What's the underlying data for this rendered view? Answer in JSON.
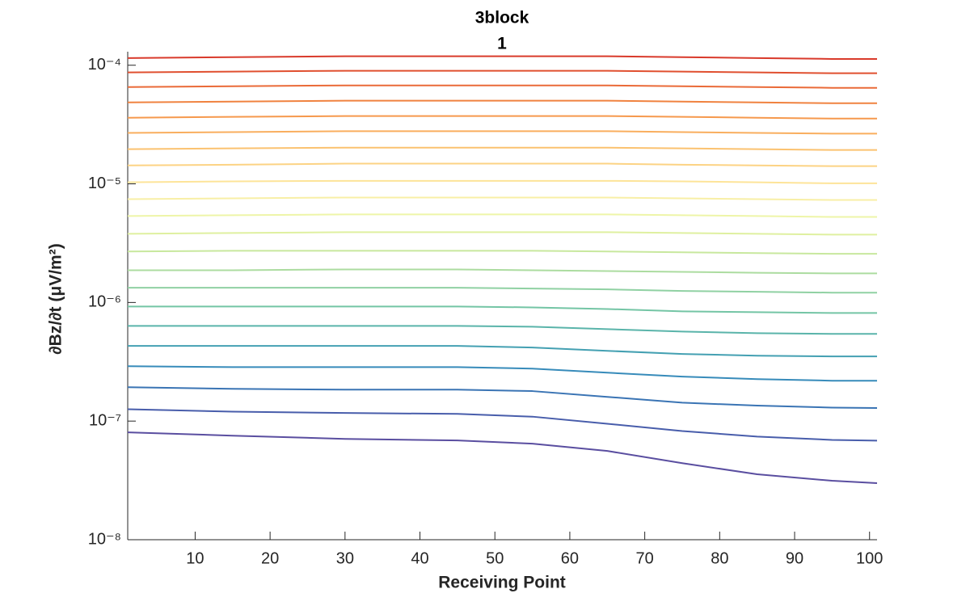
{
  "chart_data": {
    "type": "line",
    "title": "3block",
    "subtitle": "1",
    "xlabel": "Receiving Point",
    "ylabel": "∂Bz/∂t (μV/m²)",
    "log_y": true,
    "grid": false,
    "xlim": [
      1,
      101
    ],
    "xticks": [
      10,
      20,
      30,
      40,
      50,
      60,
      70,
      80,
      90,
      100
    ],
    "ylim": [
      1e-08,
      0.00013
    ],
    "yticks": [
      {
        "value": 1e-08,
        "label": "10⁻⁸"
      },
      {
        "value": 1e-07,
        "label": "10⁻⁷"
      },
      {
        "value": 1e-06,
        "label": "10⁻⁶"
      },
      {
        "value": 1e-05,
        "label": "10⁻⁵"
      },
      {
        "value": 0.0001,
        "label": "10⁻⁴"
      }
    ],
    "x": [
      1,
      15,
      30,
      45,
      55,
      65,
      75,
      85,
      95,
      101
    ],
    "series": [
      {
        "color": "#d93a2b",
        "values": [
          0.000115,
          0.000117,
          0.000119,
          0.000119,
          0.000119,
          0.000119,
          0.000117,
          0.000115,
          0.000113,
          0.000113
        ]
      },
      {
        "color": "#e04f2f",
        "values": [
          8.7e-05,
          8.84e-05,
          8.98e-05,
          8.98e-05,
          8.98e-05,
          8.98e-05,
          8.84e-05,
          8.7e-05,
          8.56e-05,
          8.56e-05
        ]
      },
      {
        "color": "#ea6a38",
        "values": [
          6.55e-05,
          6.65e-05,
          6.76e-05,
          6.76e-05,
          6.76e-05,
          6.76e-05,
          6.65e-05,
          6.55e-05,
          6.45e-05,
          6.45e-05
        ]
      },
      {
        "color": "#f0823f",
        "values": [
          4.86e-05,
          4.94e-05,
          5.02e-05,
          5.02e-05,
          5.02e-05,
          5.02e-05,
          4.94e-05,
          4.86e-05,
          4.78e-05,
          4.78e-05
        ]
      },
      {
        "color": "#f6994d",
        "values": [
          3.61e-05,
          3.67e-05,
          3.73e-05,
          3.73e-05,
          3.73e-05,
          3.73e-05,
          3.67e-05,
          3.61e-05,
          3.55e-05,
          3.55e-05
        ]
      },
      {
        "color": "#f9ae5e",
        "values": [
          2.69e-05,
          2.73e-05,
          2.78e-05,
          2.78e-05,
          2.78e-05,
          2.78e-05,
          2.73e-05,
          2.69e-05,
          2.65e-05,
          2.65e-05
        ]
      },
      {
        "color": "#fbc270",
        "values": [
          1.96e-05,
          1.99e-05,
          2.02e-05,
          2.02e-05,
          2.02e-05,
          2.02e-05,
          1.99e-05,
          1.96e-05,
          1.93e-05,
          1.93e-05
        ]
      },
      {
        "color": "#fcd384",
        "values": [
          1.43e-05,
          1.45e-05,
          1.48e-05,
          1.48e-05,
          1.48e-05,
          1.48e-05,
          1.45e-05,
          1.43e-05,
          1.41e-05,
          1.41e-05
        ]
      },
      {
        "color": "#fde499",
        "values": [
          1.03e-05,
          1.05e-05,
          1.06e-05,
          1.06e-05,
          1.06e-05,
          1.06e-05,
          1.05e-05,
          1.03e-05,
          1.01e-05,
          1.01e-05
        ]
      },
      {
        "color": "#f8efa6",
        "values": [
          7.43e-06,
          7.55e-06,
          7.67e-06,
          7.67e-06,
          7.67e-06,
          7.67e-06,
          7.55e-06,
          7.43e-06,
          7.31e-06,
          7.31e-06
        ]
      },
      {
        "color": "#eef5a8",
        "values": [
          5.35e-06,
          5.44e-06,
          5.52e-06,
          5.52e-06,
          5.52e-06,
          5.52e-06,
          5.44e-06,
          5.35e-06,
          5.26e-06,
          5.26e-06
        ]
      },
      {
        "color": "#dff0a0",
        "values": [
          3.79e-06,
          3.85e-06,
          3.91e-06,
          3.91e-06,
          3.91e-06,
          3.91e-06,
          3.85e-06,
          3.79e-06,
          3.73e-06,
          3.73e-06
        ]
      },
      {
        "color": "#c8e89e",
        "values": [
          2.69e-06,
          2.73e-06,
          2.73e-06,
          2.73e-06,
          2.73e-06,
          2.69e-06,
          2.65e-06,
          2.61e-06,
          2.57e-06,
          2.57e-06
        ]
      },
      {
        "color": "#acdca0",
        "values": [
          1.87e-06,
          1.87e-06,
          1.9e-06,
          1.9e-06,
          1.87e-06,
          1.84e-06,
          1.81e-06,
          1.78e-06,
          1.76e-06,
          1.76e-06
        ]
      },
      {
        "color": "#90d1a3",
        "values": [
          1.33e-06,
          1.33e-06,
          1.33e-06,
          1.33e-06,
          1.31e-06,
          1.29e-06,
          1.25e-06,
          1.23e-06,
          1.21e-06,
          1.21e-06
        ]
      },
      {
        "color": "#74c5a5",
        "values": [
          9.24e-07,
          9.24e-07,
          9.24e-07,
          9.24e-07,
          9.09e-07,
          8.81e-07,
          8.41e-07,
          8.28e-07,
          8.15e-07,
          8.15e-07
        ]
      },
      {
        "color": "#5ab4aa",
        "values": [
          6.35e-07,
          6.35e-07,
          6.35e-07,
          6.35e-07,
          6.25e-07,
          5.96e-07,
          5.69e-07,
          5.51e-07,
          5.43e-07,
          5.43e-07
        ]
      },
      {
        "color": "#44a0b2",
        "values": [
          4.3e-07,
          4.3e-07,
          4.3e-07,
          4.3e-07,
          4.17e-07,
          3.91e-07,
          3.68e-07,
          3.56e-07,
          3.51e-07,
          3.51e-07
        ]
      },
      {
        "color": "#378bba",
        "values": [
          2.9e-07,
          2.85e-07,
          2.85e-07,
          2.85e-07,
          2.77e-07,
          2.56e-07,
          2.37e-07,
          2.26e-07,
          2.19e-07,
          2.19e-07
        ]
      },
      {
        "color": "#3a74b4",
        "values": [
          1.93e-07,
          1.87e-07,
          1.84e-07,
          1.84e-07,
          1.79e-07,
          1.6e-07,
          1.43e-07,
          1.35e-07,
          1.3e-07,
          1.29e-07
        ]
      },
      {
        "color": "#485dab",
        "values": [
          1.26e-07,
          1.2e-07,
          1.17e-07,
          1.15e-07,
          1.09e-07,
          9.5e-08,
          8.25e-08,
          7.4e-08,
          6.94e-08,
          6.84e-08
        ]
      },
      {
        "color": "#5a4ea0",
        "values": [
          8.03e-08,
          7.54e-08,
          7.08e-08,
          6.87e-08,
          6.45e-08,
          5.6e-08,
          4.42e-08,
          3.56e-08,
          3.14e-08,
          3e-08
        ]
      }
    ]
  }
}
